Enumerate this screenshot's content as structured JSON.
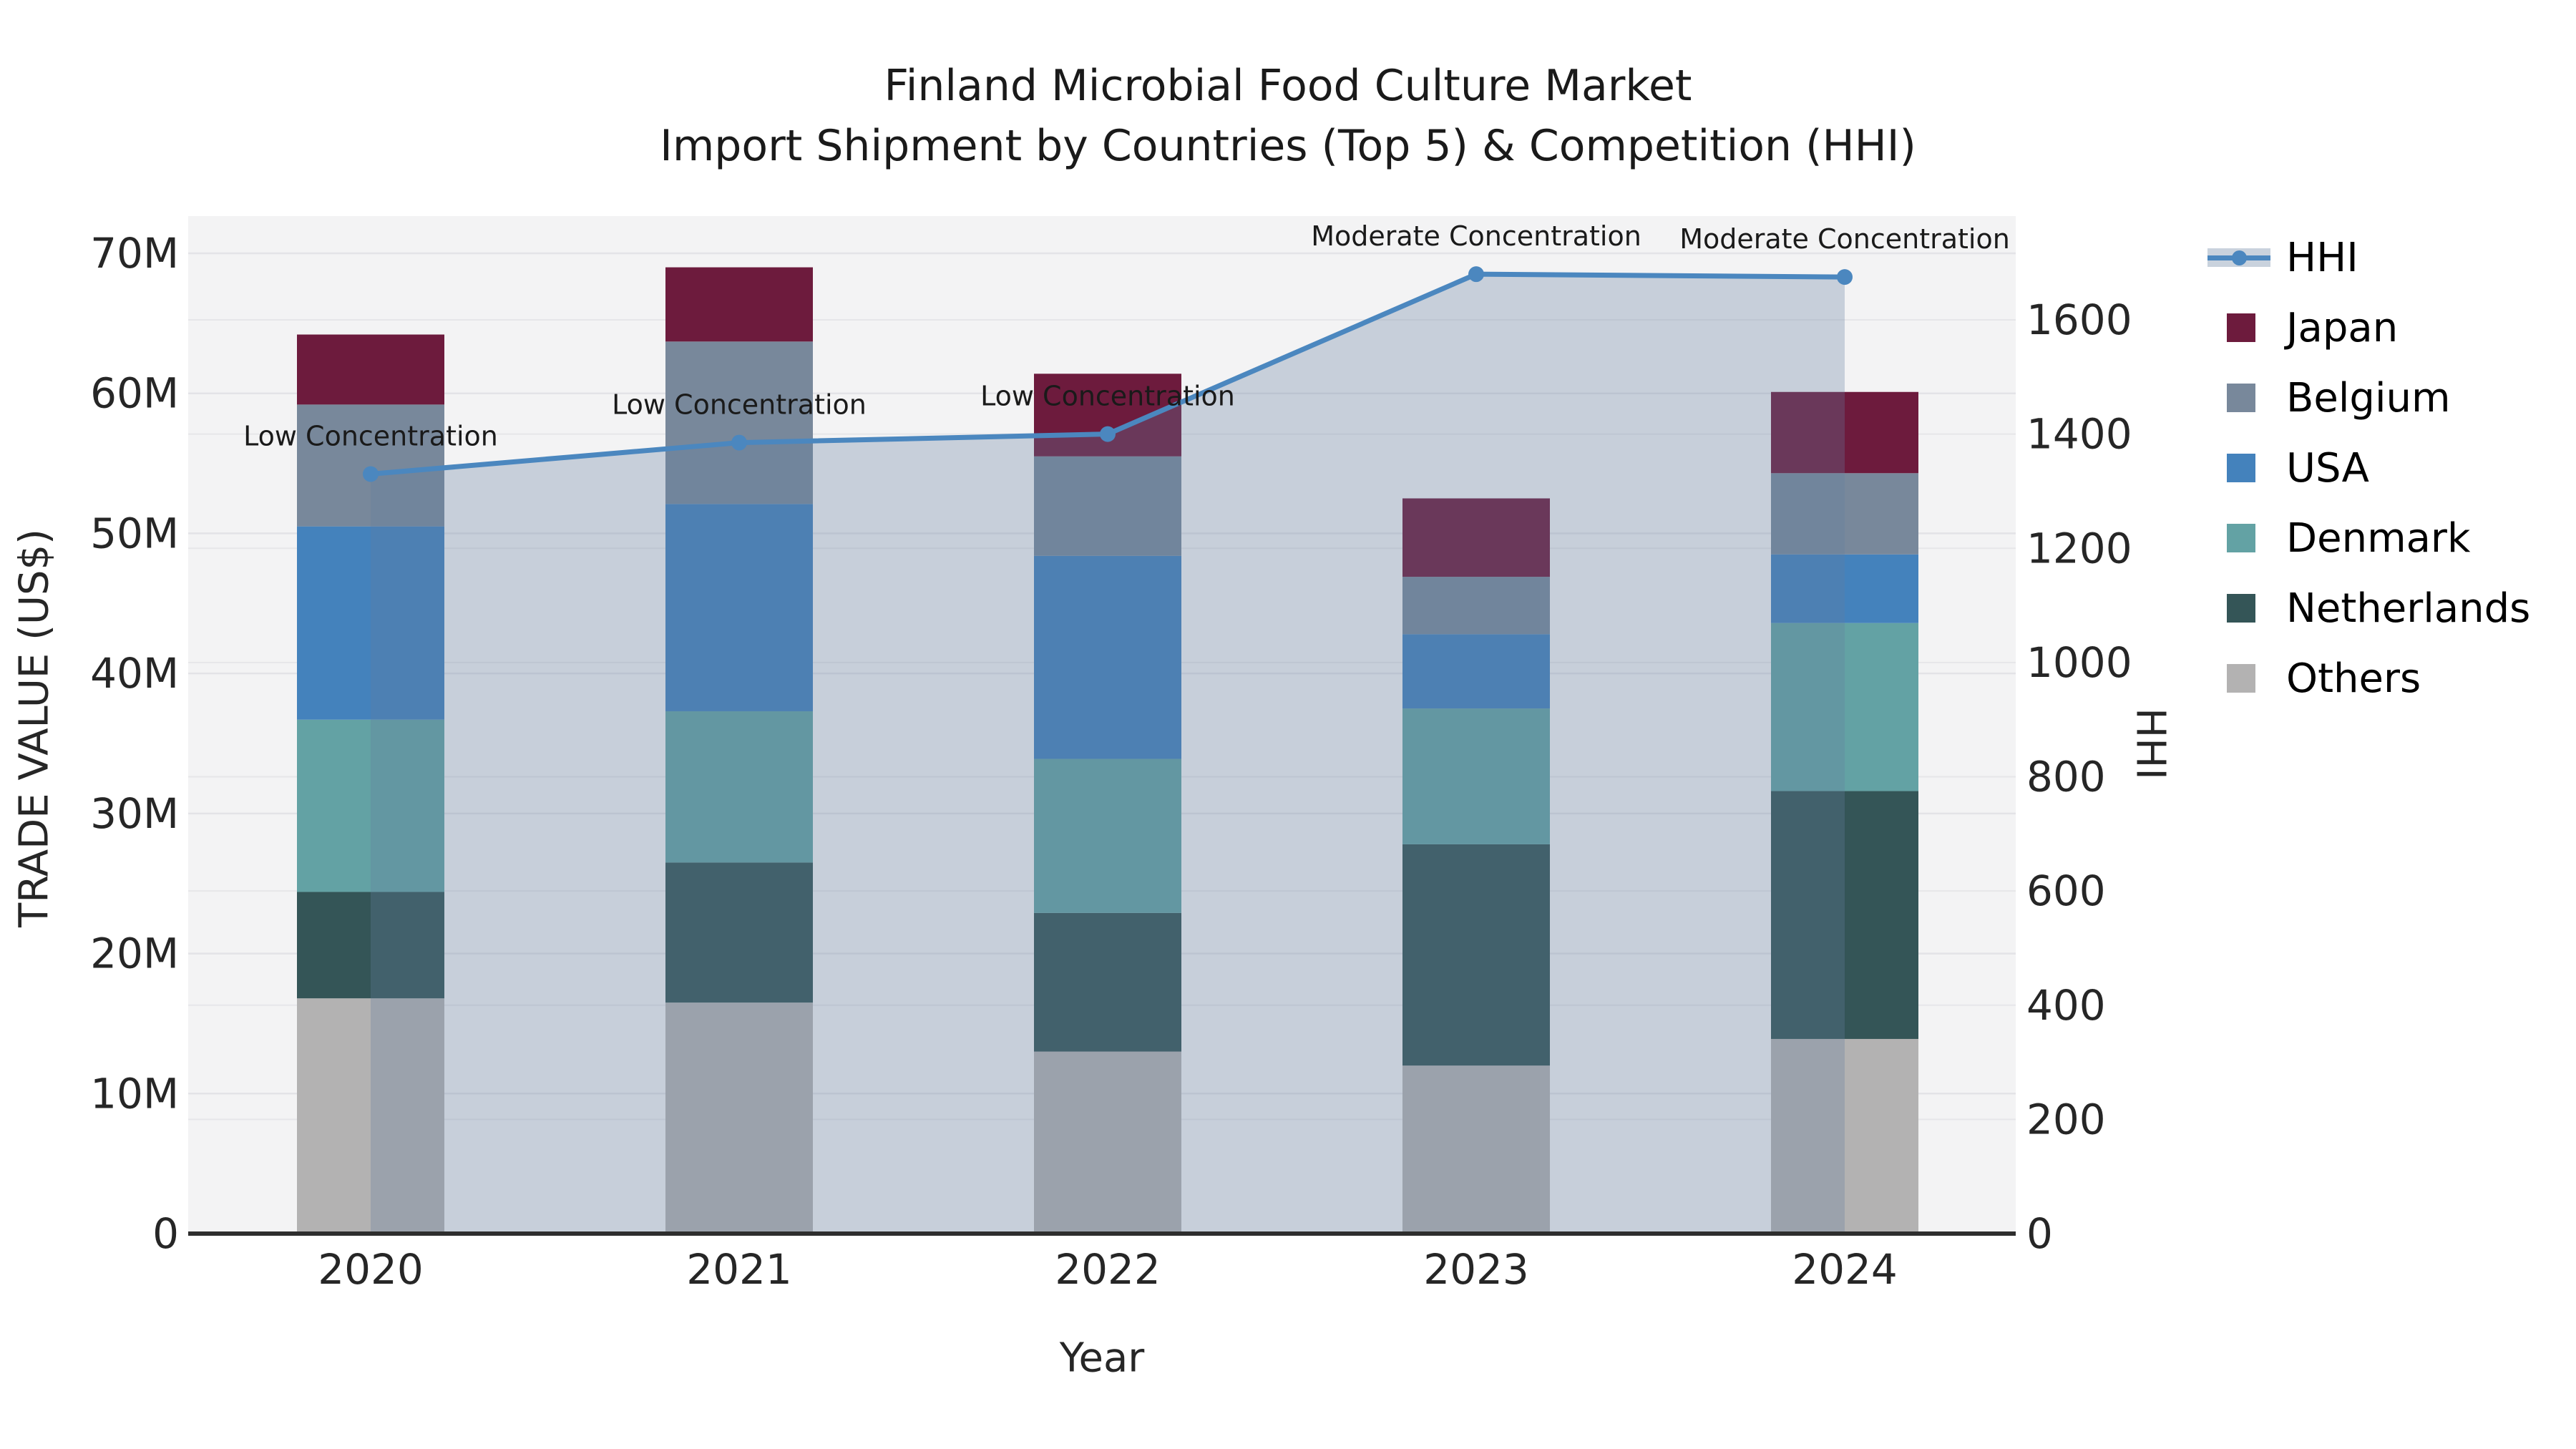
{
  "title": {
    "line1": "Finland Microbial Food Culture Market",
    "line2": "Import Shipment by Countries (Top 5) & Competition (HHI)"
  },
  "axes": {
    "left": {
      "label": "TRADE VALUE (US$)",
      "ticks": [
        "0",
        "10M",
        "20M",
        "30M",
        "40M",
        "50M",
        "60M",
        "70M"
      ],
      "tick_values": [
        0,
        10,
        20,
        30,
        40,
        50,
        60,
        70
      ],
      "lim": [
        0,
        70
      ]
    },
    "right": {
      "label": "HHI",
      "ticks": [
        "0",
        "200",
        "400",
        "600",
        "800",
        "1000",
        "1200",
        "1400",
        "1600"
      ],
      "tick_values": [
        0,
        200,
        400,
        600,
        800,
        1000,
        1200,
        1400,
        1600
      ],
      "lim": [
        0,
        1600
      ]
    },
    "x": {
      "label": "Year",
      "categories": [
        "2020",
        "2021",
        "2022",
        "2023",
        "2024"
      ]
    }
  },
  "legend": {
    "items": [
      {
        "label": "HHI",
        "type": "line",
        "color": "#4b87bf",
        "band_color": "#c9d2dd"
      },
      {
        "label": "Japan",
        "type": "swatch",
        "color": "#6d1b3d"
      },
      {
        "label": "Belgium",
        "type": "swatch",
        "color": "#78889b"
      },
      {
        "label": "USA",
        "type": "swatch",
        "color": "#4482bc"
      },
      {
        "label": "Denmark",
        "type": "swatch",
        "color": "#63a2a4"
      },
      {
        "label": "Netherlands",
        "type": "swatch",
        "color": "#345557"
      },
      {
        "label": "Others",
        "type": "swatch",
        "color": "#b3b2b2"
      }
    ]
  },
  "chart_data": {
    "type": "combo: stacked-bar + line-with-area",
    "title": "Finland Microbial Food Culture Market — Import Shipment by Countries (Top 5) & Competition (HHI)",
    "xlabel": "Year",
    "ylabel_left": "TRADE VALUE (US$)",
    "ylabel_right": "HHI",
    "categories": [
      "2020",
      "2021",
      "2022",
      "2023",
      "2024"
    ],
    "units": "million US$",
    "left_ylim": [
      0,
      70
    ],
    "right_ylim": [
      0,
      1600
    ],
    "grid": "both-axes horizontal gridlines",
    "legend_position": "outside right",
    "stack_order_bottom_to_top": [
      "Others",
      "Netherlands",
      "Denmark",
      "USA",
      "Belgium",
      "Japan"
    ],
    "bar_series": [
      {
        "name": "Japan",
        "color": "#6d1b3d",
        "values": [
          5.0,
          5.3,
          5.9,
          5.6,
          5.8
        ]
      },
      {
        "name": "Belgium",
        "color": "#78889b",
        "values": [
          8.7,
          11.6,
          7.1,
          4.1,
          5.8
        ]
      },
      {
        "name": "USA",
        "color": "#4482bc",
        "values": [
          13.8,
          14.8,
          14.5,
          5.3,
          4.9
        ]
      },
      {
        "name": "Denmark",
        "color": "#63a2a4",
        "values": [
          12.3,
          10.8,
          11.0,
          9.7,
          12.0
        ]
      },
      {
        "name": "Netherlands",
        "color": "#345557",
        "values": [
          7.6,
          10.0,
          9.9,
          15.8,
          17.7
        ]
      },
      {
        "name": "Others",
        "color": "#b3b2b2",
        "values": [
          16.8,
          16.5,
          13.0,
          12.0,
          13.9
        ]
      }
    ],
    "bar_totals": [
      64.2,
      69.0,
      61.4,
      52.5,
      60.1
    ],
    "line_series": {
      "name": "HHI",
      "color": "#4b87bf",
      "area_fill": "rgba(100,125,158,0.30)",
      "values": [
        1330,
        1385,
        1400,
        1680,
        1675
      ]
    },
    "annotations": [
      {
        "x": "2020",
        "label": "Low Concentration"
      },
      {
        "x": "2021",
        "label": "Low Concentration"
      },
      {
        "x": "2022",
        "label": "Low Concentration"
      },
      {
        "x": "2023",
        "label": "Moderate Concentration"
      },
      {
        "x": "2024",
        "label": "Moderate Concentration"
      }
    ],
    "styles": {
      "plot_bg": "#f3f3f4",
      "grid_color": "#e3e3e7",
      "spine_color": "#2e2e2e",
      "tick_color": "#262626",
      "annotation_color": "#1a1a1a"
    }
  }
}
